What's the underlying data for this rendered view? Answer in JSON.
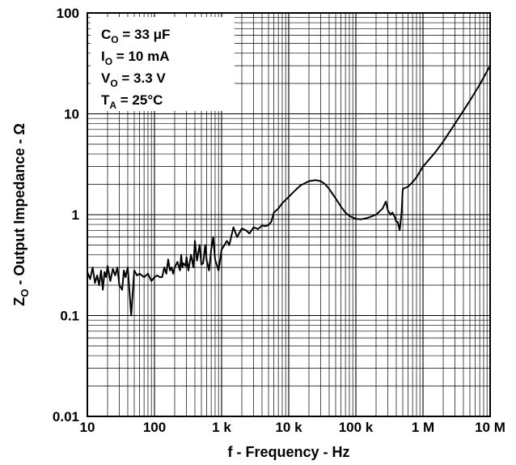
{
  "chart_data": {
    "type": "line",
    "title": "",
    "xlabel": "f - Frequency - Hz",
    "ylabel_main": "Z",
    "ylabel_sub": "O",
    "ylabel_rest": " - Output Impedance - Ω",
    "xscale": "log",
    "yscale": "log",
    "xlim": [
      10,
      10000000
    ],
    "ylim": [
      0.01,
      100
    ],
    "grid": true,
    "x_ticks": [
      {
        "value": 10,
        "label": "10"
      },
      {
        "value": 100,
        "label": "100"
      },
      {
        "value": 1000,
        "label": "1 k"
      },
      {
        "value": 10000,
        "label": "10 k"
      },
      {
        "value": 100000,
        "label": "100 k"
      },
      {
        "value": 1000000,
        "label": "1 M"
      },
      {
        "value": 10000000,
        "label": "10 M"
      }
    ],
    "y_ticks": [
      {
        "value": 100,
        "label": "100"
      },
      {
        "value": 10,
        "label": "10"
      },
      {
        "value": 1,
        "label": "1"
      },
      {
        "value": 0.1,
        "label": "0.1"
      },
      {
        "value": 0.01,
        "label": "0.01"
      }
    ],
    "annotations": [
      {
        "main": "C",
        "sub": "O",
        "rest": " = 33 μF"
      },
      {
        "main": "I",
        "sub": "O",
        "rest": " = 10 mA"
      },
      {
        "main": "V",
        "sub": "O",
        "rest": " = 3.3 V"
      },
      {
        "main": "T",
        "sub": "A",
        "rest": " = 25°C"
      }
    ],
    "series": [
      {
        "x": [
          10,
          11,
          12,
          13,
          14,
          15,
          16,
          17,
          18,
          19,
          20,
          22,
          24,
          26,
          28,
          30,
          33,
          35,
          37,
          40,
          45,
          50,
          55,
          60,
          70,
          80,
          90,
          100,
          110,
          120,
          130,
          140,
          150,
          160,
          170,
          180,
          190,
          200,
          220,
          240,
          250,
          260,
          270,
          290,
          300,
          320,
          350,
          380,
          400,
          430,
          470,
          500,
          530,
          570,
          600,
          650,
          700,
          750,
          800,
          900,
          1000,
          1100,
          1200,
          1300,
          1500,
          1700,
          2000,
          2300,
          2600,
          3000,
          3500,
          4000,
          4500,
          5000,
          5500,
          6000,
          7000,
          8000,
          10000,
          12000,
          15000,
          20000,
          25000,
          30000,
          35000,
          40000,
          50000,
          60000,
          70000,
          80000,
          100000,
          120000,
          150000,
          200000,
          250000,
          280000,
          300000,
          330000,
          350000,
          380000,
          400000,
          420000,
          450000,
          480000,
          500000,
          550000,
          600000,
          700000,
          800000,
          1000000,
          1500000,
          2000000,
          3000000,
          5000000,
          7000000,
          10000000
        ],
        "values": [
          0.27,
          0.23,
          0.3,
          0.21,
          0.25,
          0.2,
          0.28,
          0.18,
          0.27,
          0.24,
          0.31,
          0.22,
          0.29,
          0.25,
          0.3,
          0.2,
          0.18,
          0.28,
          0.24,
          0.3,
          0.1,
          0.28,
          0.25,
          0.26,
          0.24,
          0.26,
          0.22,
          0.24,
          0.25,
          0.24,
          0.24,
          0.3,
          0.26,
          0.36,
          0.28,
          0.3,
          0.26,
          0.3,
          0.34,
          0.28,
          0.4,
          0.3,
          0.33,
          0.31,
          0.38,
          0.28,
          0.4,
          0.3,
          0.55,
          0.35,
          0.5,
          0.32,
          0.33,
          0.5,
          0.35,
          0.28,
          0.45,
          0.6,
          0.36,
          0.28,
          0.45,
          0.5,
          0.55,
          0.5,
          0.75,
          0.6,
          0.73,
          0.7,
          0.65,
          0.75,
          0.72,
          0.78,
          0.77,
          0.79,
          0.85,
          1.05,
          1.15,
          1.3,
          1.5,
          1.7,
          1.95,
          2.15,
          2.2,
          2.15,
          2.0,
          1.8,
          1.45,
          1.2,
          1.05,
          0.97,
          0.91,
          0.9,
          0.93,
          1.0,
          1.15,
          1.35,
          1.1,
          1.0,
          1.05,
          0.95,
          0.85,
          0.85,
          0.7,
          1.05,
          1.8,
          1.85,
          1.9,
          2.1,
          2.35,
          3.0,
          4.1,
          5.3,
          8.0,
          13.5,
          19.5,
          30.0
        ]
      }
    ]
  }
}
